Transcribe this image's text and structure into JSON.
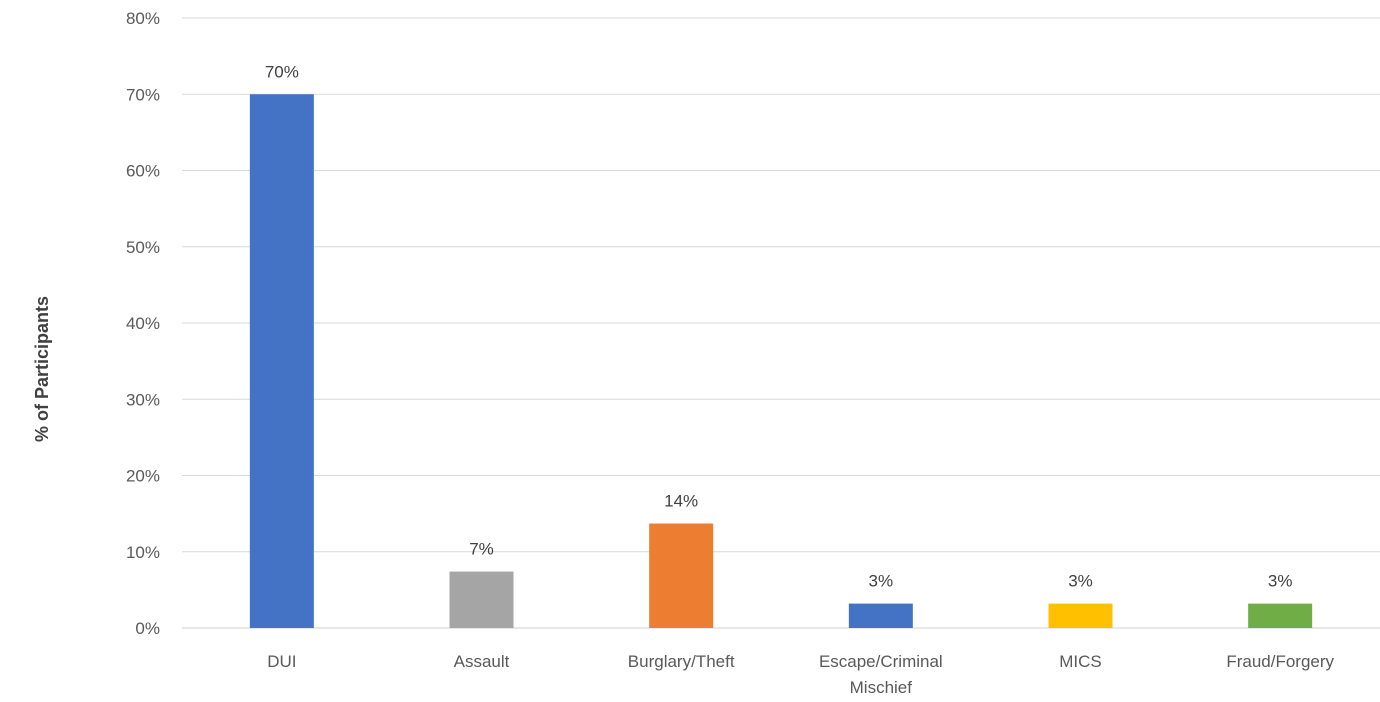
{
  "chart_data": {
    "type": "bar",
    "title": "",
    "xlabel": "",
    "ylabel": "% of Participants",
    "ylim": [
      0,
      80
    ],
    "yticks": [
      "0%",
      "10%",
      "20%",
      "30%",
      "40%",
      "50%",
      "60%",
      "70%",
      "80%"
    ],
    "grid": true,
    "categories": [
      [
        "DUI"
      ],
      [
        "Assault"
      ],
      [
        "Burglary/Theft"
      ],
      [
        "Escape/Criminal",
        "Mischief"
      ],
      [
        "MICS"
      ],
      [
        "Fraud/Forgery"
      ]
    ],
    "values": [
      70,
      7.4,
      13.7,
      3.2,
      3.2,
      3.2
    ],
    "data_labels": [
      "70%",
      "7%",
      "14%",
      "3%",
      "3%",
      "3%"
    ],
    "colors": [
      "#4472C4",
      "#A5A5A5",
      "#ED7D31",
      "#4472C4",
      "#FFC000",
      "#70AD47"
    ]
  }
}
